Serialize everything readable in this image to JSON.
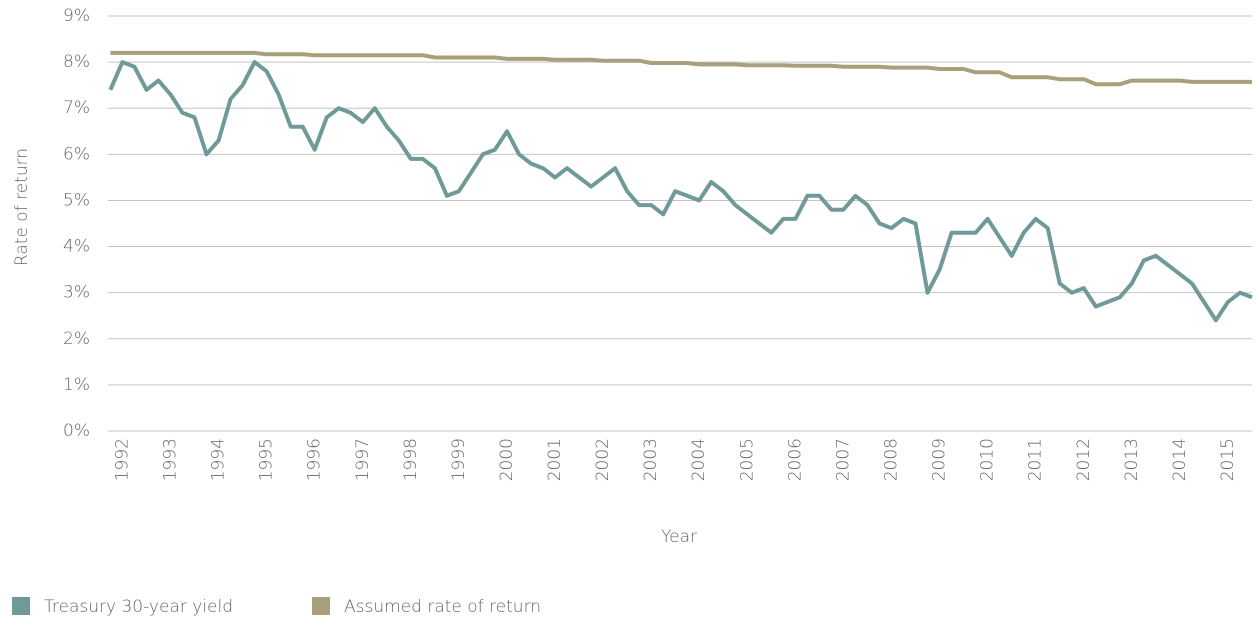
{
  "chart_data": {
    "type": "line",
    "x_label": "Year",
    "y_label": "Rate of return",
    "x": [
      1991.75,
      1992,
      1992.25,
      1992.5,
      1992.75,
      1993,
      1993.25,
      1993.5,
      1993.75,
      1994,
      1994.25,
      1994.5,
      1994.75,
      1995,
      1995.25,
      1995.5,
      1995.75,
      1996,
      1996.25,
      1996.5,
      1996.75,
      1997,
      1997.25,
      1997.5,
      1997.75,
      1998,
      1998.25,
      1998.5,
      1998.75,
      1999,
      1999.25,
      1999.5,
      1999.75,
      2000,
      2000.25,
      2000.5,
      2000.75,
      2001,
      2001.25,
      2001.5,
      2001.75,
      2002,
      2002.25,
      2002.5,
      2002.75,
      2003,
      2003.25,
      2003.5,
      2003.75,
      2004,
      2004.25,
      2004.5,
      2004.75,
      2005,
      2005.25,
      2005.5,
      2005.75,
      2006,
      2006.25,
      2006.5,
      2006.75,
      2007,
      2007.25,
      2007.5,
      2007.75,
      2008,
      2008.25,
      2008.5,
      2008.75,
      2009,
      2009.25,
      2009.5,
      2009.75,
      2010,
      2010.25,
      2010.5,
      2010.75,
      2011,
      2011.25,
      2011.5,
      2011.75,
      2012,
      2012.25,
      2012.5,
      2012.75,
      2013,
      2013.25,
      2013.5,
      2013.75,
      2014,
      2014.25,
      2014.5,
      2014.75,
      2015,
      2015.25,
      2015.5
    ],
    "series": [
      {
        "name": "Treasury 30-year yield",
        "color": "#6f9a98",
        "values": [
          7.4,
          8.0,
          7.9,
          7.4,
          7.6,
          7.3,
          6.9,
          6.8,
          6.0,
          6.3,
          7.2,
          7.5,
          8.0,
          7.8,
          7.3,
          6.6,
          6.6,
          6.1,
          6.8,
          7.0,
          6.9,
          6.7,
          7.0,
          6.6,
          6.3,
          5.9,
          5.9,
          5.7,
          5.1,
          5.2,
          5.6,
          6.0,
          6.1,
          6.5,
          6.0,
          5.8,
          5.7,
          5.5,
          5.7,
          5.5,
          5.3,
          5.5,
          5.7,
          5.2,
          4.9,
          4.9,
          4.7,
          5.2,
          5.1,
          5.0,
          5.4,
          5.2,
          4.9,
          4.7,
          4.5,
          4.3,
          4.6,
          4.6,
          5.1,
          5.1,
          4.8,
          4.8,
          5.1,
          4.9,
          4.5,
          4.4,
          4.6,
          4.5,
          3.0,
          3.5,
          4.3,
          4.3,
          4.3,
          4.6,
          4.2,
          3.8,
          4.3,
          4.6,
          4.4,
          3.2,
          3.0,
          3.1,
          2.7,
          2.8,
          2.9,
          3.2,
          3.7,
          3.8,
          3.6,
          3.4,
          3.2,
          2.8,
          2.4,
          2.8,
          3.0,
          2.9
        ]
      },
      {
        "name": "Assumed rate of return",
        "color": "#a8a07a",
        "values": [
          8.2,
          8.2,
          8.2,
          8.2,
          8.2,
          8.2,
          8.2,
          8.2,
          8.2,
          8.2,
          8.2,
          8.2,
          8.2,
          8.17,
          8.17,
          8.17,
          8.17,
          8.15,
          8.15,
          8.15,
          8.15,
          8.15,
          8.15,
          8.15,
          8.15,
          8.15,
          8.15,
          8.1,
          8.1,
          8.1,
          8.1,
          8.1,
          8.1,
          8.07,
          8.07,
          8.07,
          8.07,
          8.05,
          8.05,
          8.05,
          8.05,
          8.03,
          8.03,
          8.03,
          8.03,
          7.98,
          7.98,
          7.98,
          7.98,
          7.95,
          7.95,
          7.95,
          7.95,
          7.93,
          7.93,
          7.93,
          7.93,
          7.92,
          7.92,
          7.92,
          7.92,
          7.9,
          7.9,
          7.9,
          7.9,
          7.88,
          7.88,
          7.88,
          7.88,
          7.85,
          7.85,
          7.85,
          7.78,
          7.78,
          7.78,
          7.67,
          7.67,
          7.67,
          7.67,
          7.63,
          7.63,
          7.63,
          7.52,
          7.52,
          7.52,
          7.6,
          7.6,
          7.6,
          7.6,
          7.6,
          7.57,
          7.57,
          7.57,
          7.57,
          7.57,
          7.57
        ]
      }
    ],
    "xlim": [
      1991.7,
      2015.5
    ],
    "xticks": [
      1992,
      1993,
      1994,
      1995,
      1996,
      1997,
      1998,
      1999,
      2000,
      2001,
      2002,
      2003,
      2004,
      2005,
      2006,
      2007,
      2008,
      2009,
      2010,
      2011,
      2012,
      2013,
      2014,
      2015
    ],
    "ylim": [
      0,
      9
    ],
    "yticks": [
      {
        "value": 0,
        "label": "0%"
      },
      {
        "value": 1,
        "label": "1%"
      },
      {
        "value": 2,
        "label": "2%"
      },
      {
        "value": 3,
        "label": "3%"
      },
      {
        "value": 4,
        "label": "4%"
      },
      {
        "value": 5,
        "label": "5%"
      },
      {
        "value": 6,
        "label": "6%"
      },
      {
        "value": 7,
        "label": "7%"
      },
      {
        "value": 8,
        "label": "8%"
      },
      {
        "value": 9,
        "label": "9%"
      }
    ],
    "grid": true,
    "legend": "bottom-left"
  }
}
